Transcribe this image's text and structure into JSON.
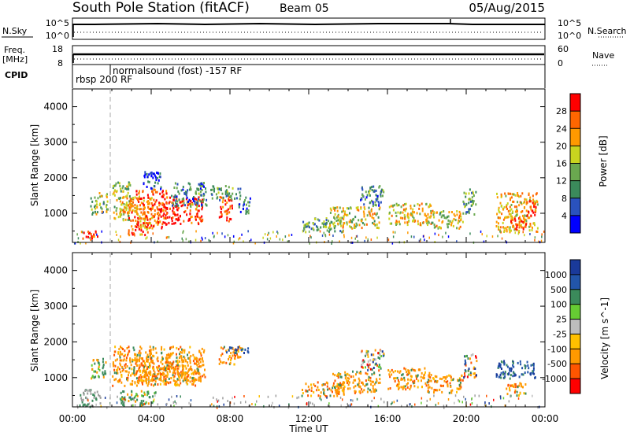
{
  "header": {
    "title": "South Pole Station (fitACF)",
    "beam": "Beam 05",
    "date": "05/Aug/2015"
  },
  "top_panels": {
    "nsky": {
      "label": "N.Sky",
      "left_ticks": [
        "10^5",
        "10^0"
      ],
      "right_ticks": [
        "10^5",
        "10^0"
      ],
      "right_label": "N.Search"
    },
    "freq": {
      "label_line1": "Freq.",
      "label_line2": "[MHz]",
      "left_ticks": [
        "18",
        "8"
      ],
      "right_ticks": [
        "60",
        "0"
      ],
      "right_label": "Nave"
    },
    "cpid": {
      "label": "CPID",
      "program1": "rbsp 200 RF",
      "program2": "normalsound (fost) -157 RF"
    }
  },
  "colors": {
    "power_scale": [
      "#0000ff",
      "#2a52be",
      "#3b8a5b",
      "#6aa84f",
      "#c9d41f",
      "#ff9900",
      "#ff6600",
      "#ff0000"
    ],
    "velocity_scale": [
      "#ff0000",
      "#ff5500",
      "#ff9900",
      "#ffc000",
      "#bdbdbd",
      "#66cc33",
      "#3b8a5b",
      "#2255aa",
      "#1a3a9a"
    ],
    "ground_scatter": "#9e9e9e"
  },
  "chart_data": [
    {
      "type": "heatmap",
      "name": "power",
      "xlabel": "",
      "ylabel": "Slant Range [km]",
      "x_range_hours": [
        0,
        24
      ],
      "ylim": [
        180,
        4500
      ],
      "yticks": [
        1000,
        2000,
        3000,
        4000
      ],
      "colorbar": {
        "label": "Power [dB]",
        "range": [
          0,
          32
        ],
        "ticks": [
          "28",
          "24",
          "20",
          "16",
          "12",
          "8",
          "4"
        ]
      },
      "regions": [
        {
          "x": [
            0.5,
            1.3
          ],
          "y": [
            300,
            550
          ],
          "level": 0.9
        },
        {
          "x": [
            0.9,
            1.8
          ],
          "y": [
            1000,
            1600
          ],
          "level": 0.45
        },
        {
          "x": [
            2.0,
            2.9
          ],
          "y": [
            800,
            1900
          ],
          "level": 0.5
        },
        {
          "x": [
            2.4,
            3.3
          ],
          "y": [
            1000,
            1500
          ],
          "level": 0.7
        },
        {
          "x": [
            2.8,
            4.0
          ],
          "y": [
            400,
            1500
          ],
          "level": 0.75
        },
        {
          "x": [
            3.2,
            4.8
          ],
          "y": [
            600,
            1700
          ],
          "level": 0.85
        },
        {
          "x": [
            4.7,
            6.6
          ],
          "y": [
            700,
            1500
          ],
          "level": 0.95
        },
        {
          "x": [
            5.0,
            6.8
          ],
          "y": [
            1200,
            1900
          ],
          "level": 0.3
        },
        {
          "x": [
            3.5,
            4.5
          ],
          "y": [
            1700,
            2200
          ],
          "level": 0.15
        },
        {
          "x": [
            7.4,
            8.1
          ],
          "y": [
            800,
            1500
          ],
          "level": 0.9
        },
        {
          "x": [
            7.0,
            8.5
          ],
          "y": [
            1400,
            1800
          ],
          "level": 0.35
        },
        {
          "x": [
            8.4,
            9.0
          ],
          "y": [
            1000,
            1500
          ],
          "level": 0.25
        },
        {
          "x": [
            11.6,
            13.8
          ],
          "y": [
            500,
            900
          ],
          "level": 0.4
        },
        {
          "x": [
            13.0,
            15.6
          ],
          "y": [
            600,
            1200
          ],
          "level": 0.55
        },
        {
          "x": [
            14.6,
            15.8
          ],
          "y": [
            1200,
            1800
          ],
          "level": 0.3
        },
        {
          "x": [
            16.0,
            18.2
          ],
          "y": [
            700,
            1300
          ],
          "level": 0.6
        },
        {
          "x": [
            18.0,
            19.8
          ],
          "y": [
            600,
            1100
          ],
          "level": 0.55
        },
        {
          "x": [
            19.8,
            20.5
          ],
          "y": [
            1000,
            1700
          ],
          "level": 0.4
        },
        {
          "x": [
            21.5,
            23.6
          ],
          "y": [
            500,
            1600
          ],
          "level": 0.65
        },
        {
          "x": [
            22.2,
            23.0
          ],
          "y": [
            500,
            900
          ],
          "level": 0.85
        },
        {
          "x": [
            23.0,
            23.5
          ],
          "y": [
            900,
            1400
          ],
          "level": 0.9
        }
      ]
    },
    {
      "type": "heatmap",
      "name": "velocity",
      "xlabel": "Time UT",
      "ylabel": "Slant Range [km]",
      "x_range_hours": [
        0,
        24
      ],
      "xticks": [
        "00:00",
        "04:00",
        "08:00",
        "12:00",
        "16:00",
        "20:00",
        "00:00"
      ],
      "ylim": [
        180,
        4500
      ],
      "yticks": [
        1000,
        2000,
        3000,
        4000
      ],
      "colorbar": {
        "label": "Velocity [m s^-1]",
        "range": [
          -1200,
          1200
        ],
        "ticks": [
          "1000",
          "500",
          "100",
          "25",
          "-25",
          "-100",
          "-500",
          "-1000"
        ]
      },
      "regions": [
        {
          "x": [
            0.3,
            1.4
          ],
          "y": [
            200,
            700
          ],
          "level": "gs"
        },
        {
          "x": [
            0.9,
            1.7
          ],
          "y": [
            1000,
            1600
          ],
          "level": "green"
        },
        {
          "x": [
            2.0,
            6.7
          ],
          "y": [
            800,
            1900
          ],
          "level": "orange"
        },
        {
          "x": [
            3.0,
            6.5
          ],
          "y": [
            900,
            1600
          ],
          "level": "orange"
        },
        {
          "x": [
            2.4,
            4.2
          ],
          "y": [
            250,
            650
          ],
          "level": "green"
        },
        {
          "x": [
            7.4,
            8.6
          ],
          "y": [
            1400,
            1900
          ],
          "level": "orange"
        },
        {
          "x": [
            7.8,
            8.9
          ],
          "y": [
            1700,
            1900
          ],
          "level": "blue"
        },
        {
          "x": [
            11.6,
            13.8
          ],
          "y": [
            500,
            900
          ],
          "level": "orange"
        },
        {
          "x": [
            13.2,
            15.6
          ],
          "y": [
            600,
            1200
          ],
          "level": "orange"
        },
        {
          "x": [
            14.6,
            15.8
          ],
          "y": [
            1200,
            1800
          ],
          "level": "mixed"
        },
        {
          "x": [
            16.0,
            18.2
          ],
          "y": [
            700,
            1300
          ],
          "level": "orange"
        },
        {
          "x": [
            18.0,
            19.8
          ],
          "y": [
            600,
            1100
          ],
          "level": "orange"
        },
        {
          "x": [
            19.8,
            20.5
          ],
          "y": [
            1000,
            1700
          ],
          "level": "mixed"
        },
        {
          "x": [
            21.5,
            23.5
          ],
          "y": [
            1000,
            1500
          ],
          "level": "blue"
        },
        {
          "x": [
            22.0,
            23.0
          ],
          "y": [
            500,
            900
          ],
          "level": "orange"
        }
      ]
    }
  ]
}
